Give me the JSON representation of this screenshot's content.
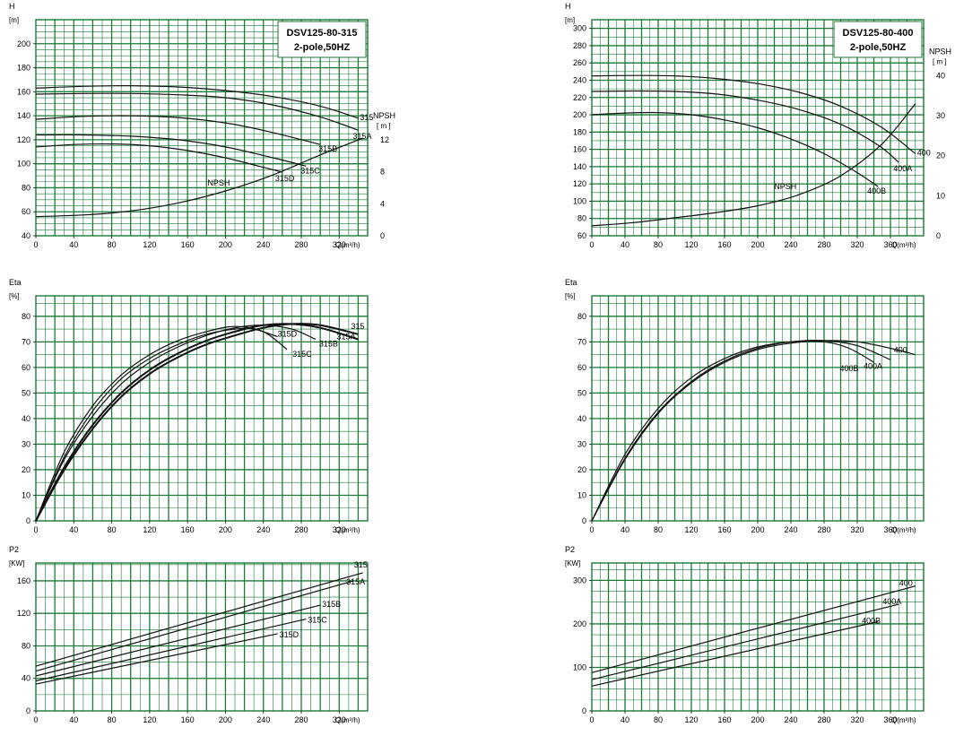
{
  "chart_data": [
    {
      "id": "h-315",
      "type": "line",
      "title": "DSV125-80-315",
      "subtitle": "2-pole,50HZ",
      "ylabel": "H",
      "yunit": "[m]",
      "xunit": "Q(m³/h)",
      "xlim": [
        0,
        350
      ],
      "ylim": [
        40,
        220
      ],
      "xticks": [
        0,
        40,
        80,
        120,
        160,
        200,
        240,
        280,
        320
      ],
      "yticks": [
        40,
        60,
        80,
        100,
        120,
        140,
        160,
        180,
        200
      ],
      "secondary_axis": {
        "label": "NPSH",
        "unit": "[ m ]",
        "ticks": [
          0,
          4,
          8,
          12
        ],
        "ylim": [
          0,
          27
        ]
      },
      "series": [
        {
          "name": "315",
          "label": "315",
          "x": [
            0,
            50,
            100,
            150,
            200,
            250,
            300,
            340
          ],
          "y": [
            163,
            164.5,
            165,
            164,
            161,
            156,
            148,
            138
          ]
        },
        {
          "name": "315A",
          "label": "315A",
          "x": [
            0,
            50,
            100,
            150,
            200,
            250,
            300,
            340
          ],
          "y": [
            158,
            158.5,
            158.5,
            157.5,
            155,
            149,
            139,
            128
          ]
        },
        {
          "name": "315B",
          "label": "315B",
          "x": [
            0,
            50,
            100,
            150,
            200,
            250,
            300
          ],
          "y": [
            137,
            139.5,
            140,
            138.5,
            134,
            126,
            116
          ]
        },
        {
          "name": "315C",
          "label": "315C",
          "x": [
            0,
            50,
            100,
            150,
            200,
            250,
            285
          ],
          "y": [
            124,
            124,
            123,
            120,
            114,
            105,
            98
          ]
        },
        {
          "name": "315D",
          "label": "315D",
          "x": [
            0,
            40,
            80,
            120,
            160,
            200,
            235,
            260
          ],
          "y": [
            114,
            116,
            116.5,
            115,
            111,
            105,
            98,
            93
          ]
        },
        {
          "name": "NPSH",
          "label": "NPSH",
          "axis": "secondary",
          "x": [
            0,
            50,
            100,
            150,
            200,
            250,
            300,
            345
          ],
          "y": [
            2.4,
            2.6,
            3.1,
            4.1,
            5.6,
            7.6,
            10.1,
            12.2
          ]
        }
      ]
    },
    {
      "id": "h-400",
      "type": "line",
      "title": "DSV125-80-400",
      "subtitle": "2-pole,50HZ",
      "ylabel": "H",
      "yunit": "[m]",
      "xunit": "Q(m³/h)",
      "xlim": [
        0,
        400
      ],
      "ylim": [
        60,
        310
      ],
      "xticks": [
        0,
        40,
        80,
        120,
        160,
        200,
        240,
        280,
        320,
        360
      ],
      "yticks": [
        60,
        80,
        100,
        120,
        140,
        160,
        180,
        200,
        220,
        240,
        260,
        280,
        300
      ],
      "secondary_axis": {
        "label": "NPSH",
        "unit": "[ m ]",
        "ticks": [
          0,
          10,
          20,
          30,
          40
        ],
        "ylim": [
          0,
          54
        ]
      },
      "series": [
        {
          "name": "400",
          "label": "400",
          "x": [
            0,
            50,
            100,
            150,
            200,
            250,
            300,
            350,
            390
          ],
          "y": [
            245,
            245.5,
            245,
            242,
            236,
            226,
            210,
            185,
            155
          ]
        },
        {
          "name": "400A",
          "label": "400A",
          "x": [
            0,
            50,
            100,
            150,
            200,
            250,
            300,
            345,
            370
          ],
          "y": [
            227,
            227.5,
            227,
            224,
            217,
            206,
            189,
            165,
            145
          ]
        },
        {
          "name": "400B",
          "label": "400B",
          "x": [
            0,
            40,
            80,
            120,
            160,
            200,
            240,
            280,
            320,
            345
          ],
          "y": [
            200,
            202,
            202.5,
            200,
            194,
            185,
            172,
            155,
            133,
            117
          ]
        },
        {
          "name": "NPSH",
          "label": "NPSH",
          "axis": "secondary",
          "x": [
            0,
            50,
            100,
            150,
            200,
            250,
            300,
            350,
            390
          ],
          "y": [
            2.5,
            3.3,
            4.5,
            5.8,
            7.5,
            10.3,
            15,
            23,
            33
          ]
        }
      ]
    },
    {
      "id": "eta-315",
      "type": "line",
      "ylabel": "Eta",
      "yunit": "[%]",
      "xunit": "Q(m³/h)",
      "xlim": [
        0,
        350
      ],
      "ylim": [
        0,
        88
      ],
      "xticks": [
        0,
        40,
        80,
        120,
        160,
        200,
        240,
        280,
        320
      ],
      "yticks": [
        0,
        10,
        20,
        30,
        40,
        50,
        60,
        70,
        80
      ],
      "series": [
        {
          "name": "315",
          "label": "315",
          "x": [
            0,
            30,
            60,
            90,
            120,
            150,
            180,
            210,
            240,
            270,
            300,
            340
          ],
          "y": [
            0,
            20,
            36,
            48.5,
            57.5,
            64,
            69,
            72.5,
            75.5,
            77,
            76.5,
            73
          ]
        },
        {
          "name": "315A",
          "label": "315A",
          "x": [
            0,
            30,
            60,
            90,
            120,
            150,
            180,
            210,
            240,
            270,
            300,
            340
          ],
          "y": [
            0,
            21,
            37.5,
            50,
            59,
            65.5,
            70.5,
            74,
            76.5,
            77,
            75.5,
            71
          ]
        },
        {
          "name": "315B",
          "label": "315B",
          "x": [
            0,
            30,
            60,
            90,
            120,
            150,
            180,
            210,
            240,
            270,
            295
          ],
          "y": [
            0,
            24,
            41,
            53.5,
            62,
            68,
            72.5,
            75.5,
            76.5,
            75,
            71
          ]
        },
        {
          "name": "315C",
          "label": "315C",
          "x": [
            0,
            30,
            60,
            90,
            120,
            150,
            180,
            210,
            240,
            265
          ],
          "y": [
            0,
            27,
            45,
            57,
            65,
            70.5,
            74,
            76,
            74,
            67
          ]
        },
        {
          "name": "315D",
          "label": "315D",
          "x": [
            0,
            30,
            60,
            90,
            120,
            150,
            180,
            210,
            230,
            255
          ],
          "y": [
            0,
            25,
            43,
            55.5,
            63.5,
            69,
            73,
            75,
            75,
            72
          ]
        }
      ]
    },
    {
      "id": "eta-400",
      "type": "line",
      "ylabel": "Eta",
      "yunit": "[%]",
      "xunit": "Q(m³/h)",
      "xlim": [
        0,
        400
      ],
      "ylim": [
        0,
        88
      ],
      "xticks": [
        0,
        40,
        80,
        120,
        160,
        200,
        240,
        280,
        320,
        360
      ],
      "yticks": [
        0,
        10,
        20,
        30,
        40,
        50,
        60,
        70,
        80
      ],
      "series": [
        {
          "name": "400",
          "label": "400",
          "x": [
            0,
            40,
            80,
            120,
            160,
            200,
            240,
            280,
            320,
            360,
            390
          ],
          "y": [
            0,
            24,
            42,
            54,
            62,
            67,
            69.5,
            70.5,
            70,
            67.5,
            65
          ]
        },
        {
          "name": "400A",
          "label": "400A",
          "x": [
            0,
            40,
            80,
            120,
            160,
            200,
            240,
            280,
            320,
            360
          ],
          "y": [
            0,
            24.5,
            42.5,
            54.5,
            62.5,
            67.5,
            70,
            70.5,
            68.5,
            63
          ]
        },
        {
          "name": "400B",
          "label": "400B",
          "x": [
            0,
            40,
            80,
            120,
            160,
            200,
            240,
            280,
            310,
            340
          ],
          "y": [
            0,
            26,
            44,
            56,
            63.5,
            68,
            70,
            70,
            67.5,
            62
          ]
        }
      ]
    },
    {
      "id": "p2-315",
      "type": "line",
      "ylabel": "P2",
      "yunit": "[KW]",
      "xunit": "Q(m³/h)",
      "xlim": [
        0,
        350
      ],
      "ylim": [
        0,
        182
      ],
      "xticks": [
        0,
        40,
        80,
        120,
        160,
        200,
        240,
        280,
        320
      ],
      "yticks": [
        0,
        40,
        80,
        120,
        160
      ],
      "series": [
        {
          "name": "315",
          "label": "315",
          "x": [
            0,
            345
          ],
          "y": [
            55,
            170
          ]
        },
        {
          "name": "315A",
          "label": "315A",
          "x": [
            0,
            335
          ],
          "y": [
            49,
            160
          ]
        },
        {
          "name": "315B",
          "label": "315B",
          "x": [
            0,
            300
          ],
          "y": [
            43,
            130
          ]
        },
        {
          "name": "315C",
          "label": "315C",
          "x": [
            0,
            285
          ],
          "y": [
            37,
            113
          ]
        },
        {
          "name": "315D",
          "label": "315D",
          "x": [
            0,
            255
          ],
          "y": [
            33,
            95
          ]
        }
      ]
    },
    {
      "id": "p2-400",
      "type": "line",
      "ylabel": "P2",
      "yunit": "[KW]",
      "xunit": "Q(m³/h)",
      "xlim": [
        0,
        400
      ],
      "ylim": [
        0,
        340
      ],
      "xticks": [
        0,
        40,
        80,
        120,
        160,
        200,
        240,
        280,
        320,
        360
      ],
      "yticks": [
        0,
        100,
        200,
        300
      ],
      "series": [
        {
          "name": "400",
          "label": "400",
          "x": [
            0,
            390
          ],
          "y": [
            88,
            287
          ]
        },
        {
          "name": "400A",
          "label": "400A",
          "x": [
            0,
            370
          ],
          "y": [
            72,
            245
          ]
        },
        {
          "name": "400B",
          "label": "400B",
          "x": [
            0,
            345
          ],
          "y": [
            57,
            205
          ]
        }
      ]
    }
  ]
}
